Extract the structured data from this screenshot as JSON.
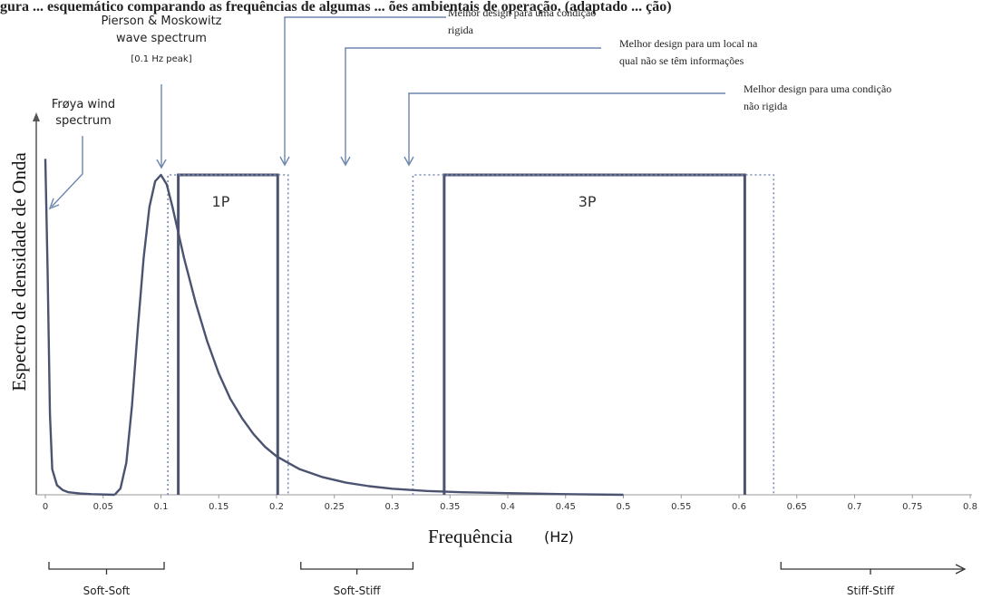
{
  "header_fragment": "gura  ...  esquemático comparando as frequências de algumas ... ões ambientais de operação. (adaptado ... ção)",
  "chart_data": {
    "type": "line",
    "xlabel": "Frequência",
    "xunit": "(Hz)",
    "ylabel": "Espectro de densidade de Onda",
    "xlim": [
      0,
      0.8
    ],
    "xticks": [
      0,
      0.05,
      0.1,
      0.15,
      0.2,
      0.25,
      0.3,
      0.35,
      0.4,
      0.45,
      0.5,
      0.55,
      0.6,
      0.65,
      0.7,
      0.75,
      0.8
    ],
    "ylim": [
      0,
      1
    ],
    "series": [
      {
        "name": "Pierson & Moskowitz wave spectrum",
        "x": [
          0.06,
          0.065,
          0.07,
          0.075,
          0.08,
          0.085,
          0.09,
          0.095,
          0.1,
          0.105,
          0.11,
          0.115,
          0.12,
          0.13,
          0.14,
          0.15,
          0.16,
          0.17,
          0.18,
          0.19,
          0.2,
          0.22,
          0.24,
          0.26,
          0.28,
          0.3,
          0.33,
          0.36,
          0.4,
          0.45,
          0.5
        ],
        "y": [
          0.0,
          0.02,
          0.1,
          0.28,
          0.52,
          0.74,
          0.9,
          0.98,
          1.0,
          0.97,
          0.9,
          0.82,
          0.74,
          0.6,
          0.48,
          0.38,
          0.3,
          0.24,
          0.19,
          0.15,
          0.12,
          0.08,
          0.055,
          0.038,
          0.027,
          0.019,
          0.012,
          0.008,
          0.005,
          0.002,
          0.0
        ]
      },
      {
        "name": "Frøya wind spectrum",
        "x": [
          0.0,
          0.002,
          0.004,
          0.006,
          0.01,
          0.015,
          0.02,
          0.03,
          0.04,
          0.06
        ],
        "y": [
          1.2,
          0.7,
          0.25,
          0.08,
          0.03,
          0.015,
          0.008,
          0.004,
          0.002,
          0.0
        ]
      }
    ],
    "bands": [
      {
        "label": "1P",
        "x_from": 0.115,
        "x_to": 0.201,
        "y": 1.0,
        "style": "solid"
      },
      {
        "label": "",
        "x_from": 0.106,
        "x_to": 0.21,
        "y": 1.0,
        "style": "dotted"
      },
      {
        "label": "3P",
        "x_from": 0.345,
        "x_to": 0.605,
        "y": 1.0,
        "style": "solid"
      },
      {
        "label": "",
        "x_from": 0.318,
        "x_to": 0.63,
        "y": 1.0,
        "style": "dotted"
      }
    ],
    "annotations": [
      {
        "lines": [
          "Pierson & Moskowitz",
          "wave spectrum"
        ],
        "subline": "[0.1 Hz peak]",
        "arrow_x": 0.1
      },
      {
        "lines": [
          "Frøya wind",
          "spectrum"
        ],
        "arrow_x": 0.002
      },
      {
        "lines": [
          "Melhor design para uma condição",
          "rigida"
        ],
        "arrow_x": 0.206
      },
      {
        "lines": [
          "Melhor design para um local na",
          "qual não se têm informações"
        ],
        "arrow_x": 0.26
      },
      {
        "lines": [
          "Melhor design para uma condição",
          "não rigida"
        ],
        "arrow_x": 0.315
      }
    ],
    "regions": [
      {
        "label": "Soft-Soft",
        "x_from": 0.0,
        "x_to": 0.103
      },
      {
        "label": "Soft-Stiff",
        "x_from": 0.221,
        "x_to": 0.318
      },
      {
        "label": "Stiff-Stiff",
        "x_from": 0.63,
        "x_to": 0.8,
        "arrow": true
      }
    ]
  }
}
